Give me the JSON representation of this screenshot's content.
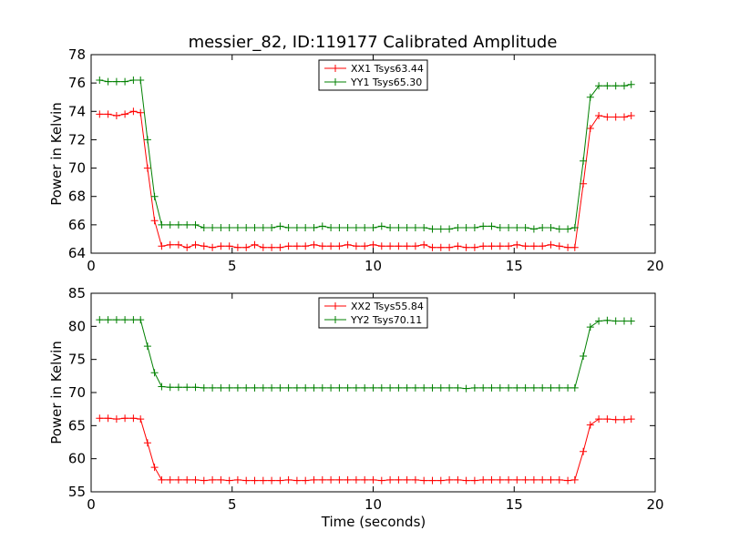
{
  "chart_data": [
    {
      "type": "line",
      "title": "messier_82, ID:119177 Calibrated Amplitude",
      "xlabel": "",
      "ylabel": "Power in Kelvin",
      "xlim": [
        0,
        20
      ],
      "ylim": [
        64,
        78
      ],
      "xticks": [
        "0",
        "5",
        "10",
        "15",
        "20"
      ],
      "yticks": [
        "64",
        "66",
        "68",
        "70",
        "72",
        "74",
        "76",
        "78"
      ],
      "legend": "top-center",
      "x": [
        0.3,
        0.6,
        0.9,
        1.2,
        1.5,
        1.75,
        2.0,
        2.25,
        2.5,
        2.8,
        3.1,
        3.4,
        3.7,
        4.0,
        4.3,
        4.6,
        4.9,
        5.2,
        5.5,
        5.8,
        6.1,
        6.4,
        6.7,
        7.0,
        7.3,
        7.6,
        7.9,
        8.2,
        8.5,
        8.8,
        9.1,
        9.4,
        9.7,
        10.0,
        10.3,
        10.6,
        10.9,
        11.2,
        11.5,
        11.8,
        12.1,
        12.4,
        12.7,
        13.0,
        13.3,
        13.6,
        13.9,
        14.2,
        14.5,
        14.8,
        15.1,
        15.4,
        15.7,
        16.0,
        16.3,
        16.6,
        16.9,
        17.15,
        17.45,
        17.7,
        18.0,
        18.3,
        18.6,
        18.9,
        19.15
      ],
      "series": [
        {
          "name": "XX1 Tsys63.44",
          "color": "#ff0000",
          "values": [
            73.8,
            73.8,
            73.7,
            73.8,
            74.0,
            73.9,
            70.0,
            66.3,
            64.5,
            64.6,
            64.6,
            64.4,
            64.6,
            64.5,
            64.4,
            64.5,
            64.5,
            64.4,
            64.4,
            64.6,
            64.4,
            64.4,
            64.4,
            64.5,
            64.5,
            64.5,
            64.6,
            64.5,
            64.5,
            64.5,
            64.6,
            64.5,
            64.5,
            64.6,
            64.5,
            64.5,
            64.5,
            64.5,
            64.5,
            64.6,
            64.4,
            64.4,
            64.4,
            64.5,
            64.4,
            64.4,
            64.5,
            64.5,
            64.5,
            64.5,
            64.6,
            64.5,
            64.5,
            64.5,
            64.6,
            64.5,
            64.4,
            64.4,
            68.9,
            72.8,
            73.7,
            73.6,
            73.6,
            73.6,
            73.7
          ]
        },
        {
          "name": "YY1 Tsys65.30",
          "color": "#008000",
          "values": [
            76.2,
            76.1,
            76.1,
            76.1,
            76.2,
            76.2,
            72.0,
            68.0,
            66.0,
            66.0,
            66.0,
            66.0,
            66.0,
            65.8,
            65.8,
            65.8,
            65.8,
            65.8,
            65.8,
            65.8,
            65.8,
            65.8,
            65.9,
            65.8,
            65.8,
            65.8,
            65.8,
            65.9,
            65.8,
            65.8,
            65.8,
            65.8,
            65.8,
            65.8,
            65.9,
            65.8,
            65.8,
            65.8,
            65.8,
            65.8,
            65.7,
            65.7,
            65.7,
            65.8,
            65.8,
            65.8,
            65.9,
            65.9,
            65.8,
            65.8,
            65.8,
            65.8,
            65.7,
            65.8,
            65.8,
            65.7,
            65.7,
            65.8,
            70.5,
            75.0,
            75.8,
            75.8,
            75.8,
            75.8,
            75.9
          ]
        }
      ]
    },
    {
      "type": "line",
      "title": "",
      "xlabel": "Time (seconds)",
      "ylabel": "Power in Kelvin",
      "xlim": [
        0,
        20
      ],
      "ylim": [
        55,
        85
      ],
      "xticks": [
        "0",
        "5",
        "10",
        "15",
        "20"
      ],
      "yticks": [
        "55",
        "60",
        "65",
        "70",
        "75",
        "80",
        "85"
      ],
      "legend": "top-center",
      "x": [
        0.3,
        0.6,
        0.9,
        1.2,
        1.5,
        1.75,
        2.0,
        2.25,
        2.5,
        2.8,
        3.1,
        3.4,
        3.7,
        4.0,
        4.3,
        4.6,
        4.9,
        5.2,
        5.5,
        5.8,
        6.1,
        6.4,
        6.7,
        7.0,
        7.3,
        7.6,
        7.9,
        8.2,
        8.5,
        8.8,
        9.1,
        9.4,
        9.7,
        10.0,
        10.3,
        10.6,
        10.9,
        11.2,
        11.5,
        11.8,
        12.1,
        12.4,
        12.7,
        13.0,
        13.3,
        13.6,
        13.9,
        14.2,
        14.5,
        14.8,
        15.1,
        15.4,
        15.7,
        16.0,
        16.3,
        16.6,
        16.9,
        17.15,
        17.45,
        17.7,
        18.0,
        18.3,
        18.6,
        18.9,
        19.15
      ],
      "series": [
        {
          "name": "XX2 Tsys55.84",
          "color": "#ff0000",
          "values": [
            66.1,
            66.1,
            66.0,
            66.1,
            66.1,
            66.0,
            62.4,
            58.7,
            56.8,
            56.8,
            56.8,
            56.8,
            56.8,
            56.7,
            56.8,
            56.8,
            56.7,
            56.8,
            56.7,
            56.7,
            56.7,
            56.7,
            56.7,
            56.8,
            56.7,
            56.7,
            56.8,
            56.8,
            56.8,
            56.8,
            56.8,
            56.8,
            56.8,
            56.8,
            56.7,
            56.8,
            56.8,
            56.8,
            56.8,
            56.7,
            56.7,
            56.7,
            56.8,
            56.8,
            56.7,
            56.7,
            56.8,
            56.8,
            56.8,
            56.8,
            56.8,
            56.8,
            56.8,
            56.8,
            56.8,
            56.8,
            56.7,
            56.8,
            61.1,
            65.1,
            66.0,
            66.0,
            65.9,
            65.9,
            66.0
          ]
        },
        {
          "name": "YY2 Tsys70.11",
          "color": "#008000",
          "values": [
            81.0,
            81.0,
            81.0,
            81.0,
            81.0,
            81.0,
            77.0,
            73.0,
            70.9,
            70.8,
            70.8,
            70.8,
            70.8,
            70.7,
            70.7,
            70.7,
            70.7,
            70.7,
            70.7,
            70.7,
            70.7,
            70.7,
            70.7,
            70.7,
            70.7,
            70.7,
            70.7,
            70.7,
            70.7,
            70.7,
            70.7,
            70.7,
            70.7,
            70.7,
            70.7,
            70.7,
            70.7,
            70.7,
            70.7,
            70.7,
            70.7,
            70.7,
            70.7,
            70.7,
            70.6,
            70.7,
            70.7,
            70.7,
            70.7,
            70.7,
            70.7,
            70.7,
            70.7,
            70.7,
            70.7,
            70.7,
            70.7,
            70.7,
            75.5,
            79.9,
            80.8,
            80.9,
            80.8,
            80.8,
            80.8
          ]
        }
      ]
    }
  ]
}
